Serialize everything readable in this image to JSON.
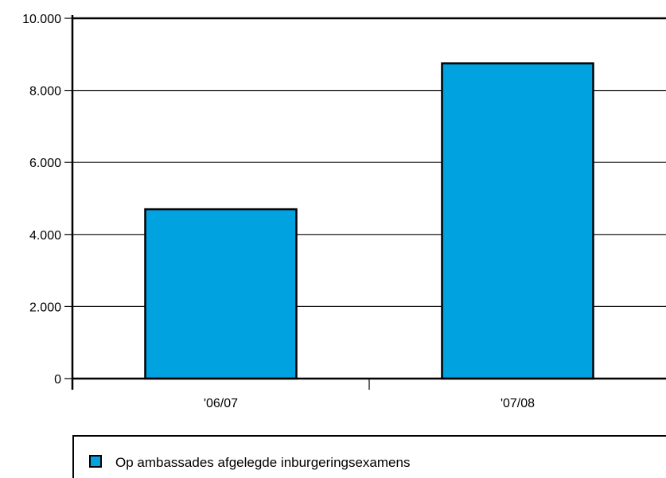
{
  "chart_data": {
    "type": "bar",
    "title": "",
    "xlabel": "",
    "ylabel": "",
    "categories": [
      "'06/07",
      "'07/08"
    ],
    "series": [
      {
        "name": "Op ambassades afgelegde inburgeringsexamens",
        "values": [
          4700,
          8750
        ],
        "color": "#00a3e0"
      }
    ],
    "ylim": [
      0,
      10000
    ],
    "yticks": [
      0,
      2000,
      4000,
      6000,
      8000,
      10000
    ],
    "ytick_labels": [
      "0",
      "2.000",
      "4.000",
      "6.000",
      "8.000",
      "10.000"
    ],
    "grid": true,
    "legend_position": "bottom",
    "colors": {
      "bar": "#00a3e0",
      "axis": "#000000",
      "grid": "#000000"
    }
  }
}
